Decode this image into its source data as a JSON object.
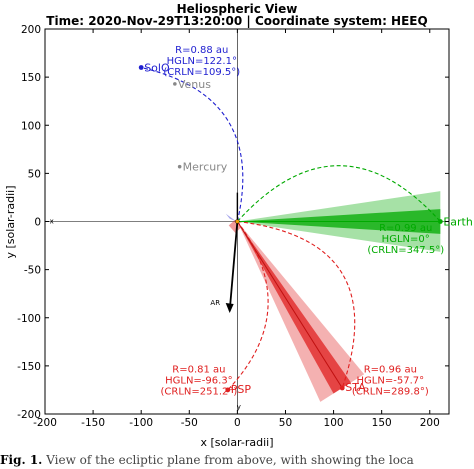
{
  "chart_data": {
    "type": "scatter",
    "title": "Heliospheric View",
    "subtitle": "Time: 2020-Nov-29T13:20:00 | Coordinate system: HEEQ",
    "xlabel": "x [solar-radii]",
    "ylabel": "y [solar-radii]",
    "xlim": [
      -200,
      220
    ],
    "ylim": [
      -200,
      200
    ],
    "xticks": [
      "-200",
      "-150",
      "-100",
      "-50",
      "0",
      "50",
      "100",
      "150",
      "200"
    ],
    "yticks": [
      "-200",
      "-150",
      "-100",
      "-50",
      "0",
      "50",
      "100",
      "150",
      "200"
    ],
    "axis_marks": {
      "x": "x",
      "y": "y"
    },
    "bodies": [
      {
        "name": "Earth",
        "x": 211,
        "y": 0,
        "color": "#00aa00"
      },
      {
        "name": "SolO",
        "x": -100,
        "y": 160,
        "color": "#1f1fd0"
      },
      {
        "name": "STA",
        "x": 109,
        "y": -173,
        "color": "#e02020"
      },
      {
        "name": "PSP",
        "x": -10,
        "y": -175,
        "color": "#e02020"
      },
      {
        "name": "Venus",
        "x": -65,
        "y": 143,
        "color": "#888888"
      },
      {
        "name": "Mercury",
        "x": -60,
        "y": 57,
        "color": "#888888"
      }
    ],
    "annotations": [
      {
        "id": "solo",
        "color": "#1f1fd0",
        "lines": [
          "R=0.88 au",
          "HGLN=122.1°",
          "(CRLN=109.5°)"
        ]
      },
      {
        "id": "earth",
        "color": "#00aa00",
        "lines": [
          "R=0.99 au",
          "HGLN=0°",
          "(CRLN=347.5°)"
        ]
      },
      {
        "id": "psp",
        "color": "#e02020",
        "lines": [
          "R=0.81 au",
          "HGLN=-96.3°",
          "(CRLN=251.2°)"
        ]
      },
      {
        "id": "sta",
        "color": "#e02020",
        "lines": [
          "R=0.96 au",
          "HGLN=-57.7°",
          "(CRLN=289.8°)"
        ]
      }
    ],
    "ar_label": "AR",
    "grid": false
  },
  "caption": {
    "prefix": "Fig. 1.",
    "text": "View of the ecliptic plane from above, with showing the loca"
  }
}
